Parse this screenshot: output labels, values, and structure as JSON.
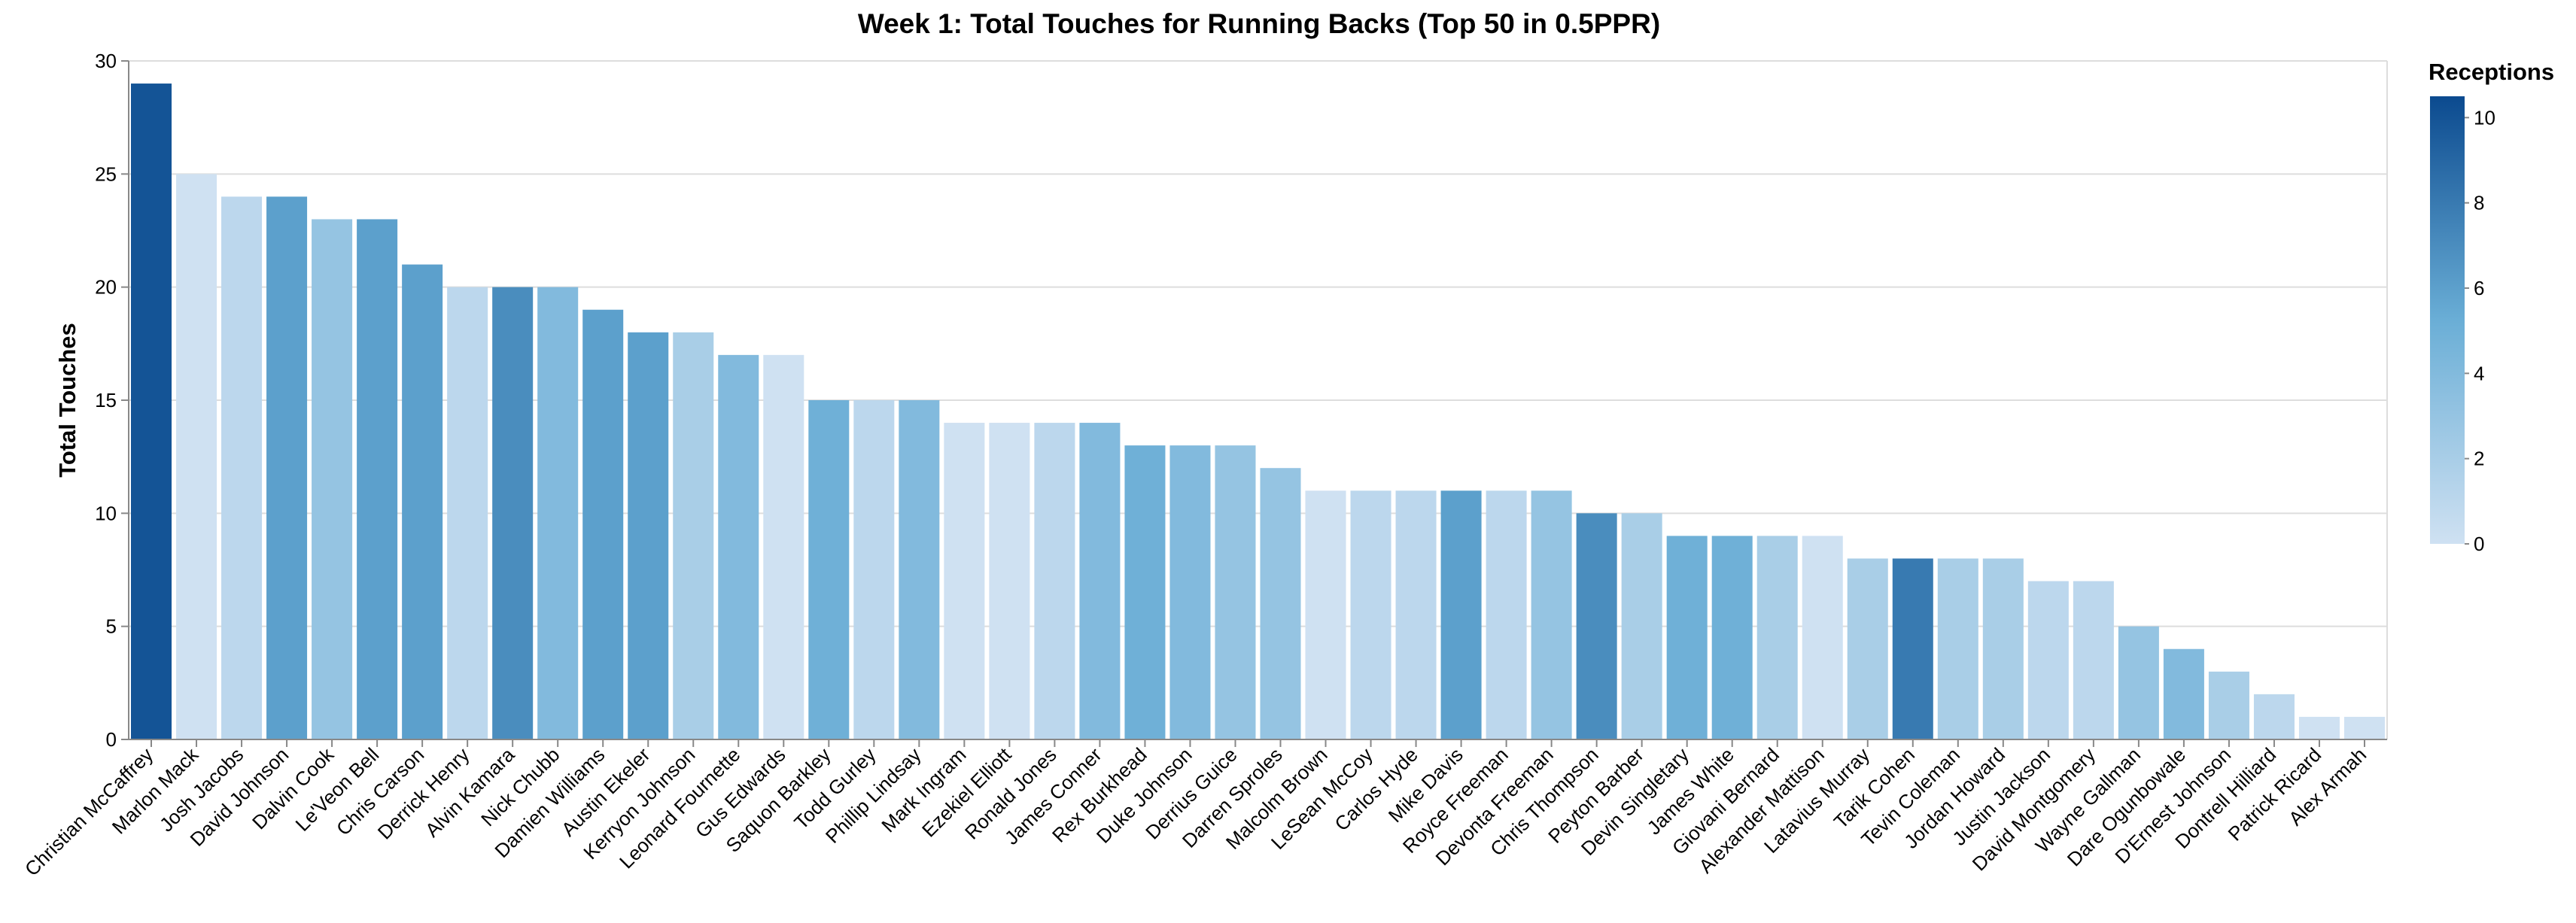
{
  "chart_data": {
    "type": "bar",
    "title": "Week 1: Total Touches for Running Backs (Top 50 in 0.5PPR)",
    "ylabel": "Total Touches",
    "xlabel": "",
    "ylim": [
      0,
      30
    ],
    "yticks": [
      0,
      5,
      10,
      15,
      20,
      25,
      30
    ],
    "grid": true,
    "legend": {
      "title": "Receptions",
      "placement": "top-right",
      "min": 0,
      "max": 10.5,
      "ticks": [
        0,
        2,
        4,
        6,
        8,
        10
      ],
      "color_low": "#cfe1f2",
      "color_high": "#0b4a8f"
    },
    "categories": [
      "Christian McCaffrey",
      "Marlon Mack",
      "Josh Jacobs",
      "David Johnson",
      "Dalvin Cook",
      "Le'Veon Bell",
      "Chris Carson",
      "Derrick Henry",
      "Alvin Kamara",
      "Nick Chubb",
      "Damien Williams",
      "Austin Ekeler",
      "Kerryon Johnson",
      "Leonard Fournette",
      "Gus Edwards",
      "Saquon Barkley",
      "Todd Gurley",
      "Phillip Lindsay",
      "Mark Ingram",
      "Ezekiel Elliott",
      "Ronald Jones",
      "James Conner",
      "Rex Burkhead",
      "Duke Johnson",
      "Derrius Guice",
      "Darren Sproles",
      "Malcolm Brown",
      "LeSean McCoy",
      "Carlos Hyde",
      "Mike Davis",
      "Royce Freeman",
      "Devonta Freeman",
      "Chris Thompson",
      "Peyton Barber",
      "Devin Singletary",
      "James White",
      "Giovani Bernard",
      "Alexander Mattison",
      "Latavius Murray",
      "Tarik Cohen",
      "Tevin Coleman",
      "Jordan Howard",
      "Justin Jackson",
      "David Montgomery",
      "Wayne Gallman",
      "Dare Ogunbowale",
      "D'Ernest Johnson",
      "Dontrell Hilliard",
      "Patrick Ricard",
      "Alex Armah"
    ],
    "series": [
      {
        "name": "Total Touches",
        "values": [
          29,
          25,
          24,
          24,
          23,
          23,
          21,
          20,
          20,
          20,
          19,
          18,
          18,
          17,
          17,
          15,
          15,
          15,
          14,
          14,
          14,
          14,
          13,
          13,
          13,
          12,
          11,
          11,
          11,
          11,
          11,
          11,
          10,
          10,
          9,
          9,
          9,
          9,
          8,
          8,
          8,
          8,
          7,
          7,
          5,
          4,
          3,
          2,
          1,
          1
        ]
      },
      {
        "name": "Receptions",
        "values": [
          10,
          0,
          1,
          6,
          3,
          6,
          6,
          1,
          7,
          4,
          6,
          6,
          2,
          4,
          0,
          5,
          1,
          4,
          0,
          0,
          1,
          4,
          5,
          4,
          3,
          3,
          0,
          1,
          1,
          6,
          1,
          3,
          7,
          2,
          5,
          5,
          2,
          0,
          2,
          8,
          2,
          2,
          1,
          1,
          3,
          4,
          2,
          1,
          0,
          0
        ]
      }
    ]
  }
}
